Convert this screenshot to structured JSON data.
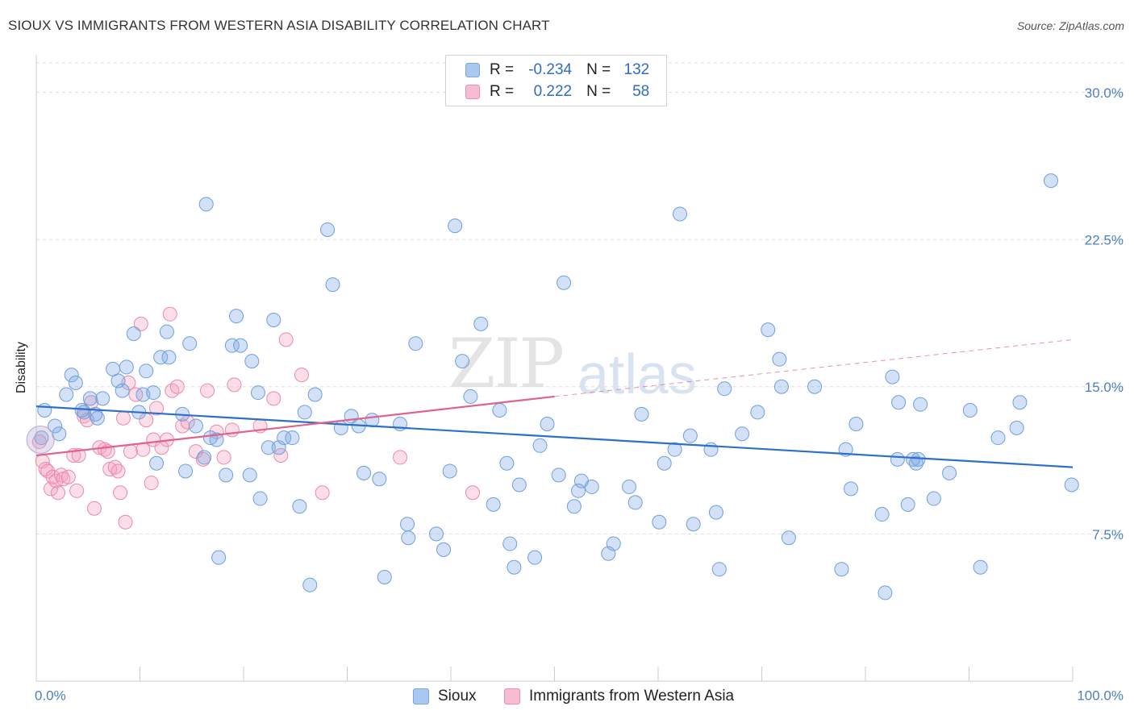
{
  "header": {
    "title": "SIOUX VS IMMIGRANTS FROM WESTERN ASIA DISABILITY CORRELATION CHART",
    "source": "Source: ZipAtlas.com"
  },
  "watermark": {
    "zip": "ZIP",
    "atlas": "atlas"
  },
  "legend": {
    "rows": [
      {
        "r_label": "R =",
        "r_value": "-0.234",
        "n_label": "N =",
        "n_value": "132",
        "color": "#a9c8f0",
        "border": "#7aa7e0"
      },
      {
        "r_label": "R =",
        "r_value": "0.222",
        "n_label": "N =",
        "n_value": "58",
        "color": "#f7bcd0",
        "border": "#ee8fb0"
      }
    ]
  },
  "bottom_legend": {
    "items": [
      {
        "label": "Sioux",
        "color": "#a9c8f0",
        "border": "#7aa7e0"
      },
      {
        "label": "Immigrants from Western Asia",
        "color": "#f7bcd0",
        "border": "#ee8fb0"
      }
    ]
  },
  "colors": {
    "sioux_fill": "rgba(126,170,230,0.35)",
    "sioux_stroke": "#6f9fdd",
    "sioux_line": "#2d6fcc",
    "imm_fill": "rgba(243,160,190,0.35)",
    "imm_stroke": "#ea8aab",
    "imm_line": "#e0628f",
    "grid": "#dddddd",
    "tick_text": "#4a7fc4"
  },
  "chart_data": {
    "type": "scatter",
    "title": "SIOUX VS IMMIGRANTS FROM WESTERN ASIA DISABILITY CORRELATION CHART",
    "xlabel": "",
    "ylabel": "Disability",
    "xlim": [
      0,
      100
    ],
    "ylim": [
      0,
      31.5
    ],
    "x_tick_labels": [
      "0.0%",
      "100.0%"
    ],
    "y_ticks": [
      7.5,
      15.0,
      22.5,
      30.0
    ],
    "y_tick_labels": [
      "7.5%",
      "15.0%",
      "22.5%",
      "30.0%"
    ],
    "grid": true,
    "legend_position": "top-center",
    "series": [
      {
        "name": "Sioux",
        "R": -0.234,
        "N": 132,
        "trend": {
          "x": [
            0,
            100
          ],
          "y": [
            14.0,
            10.9
          ]
        },
        "points": [
          [
            0.5,
            12.4
          ],
          [
            0.8,
            13.8
          ],
          [
            1.8,
            13.0
          ],
          [
            2.2,
            12.6
          ],
          [
            2.9,
            14.6
          ],
          [
            3.4,
            15.6
          ],
          [
            3.8,
            15.2
          ],
          [
            4.4,
            13.8
          ],
          [
            4.6,
            13.7
          ],
          [
            5.2,
            14.4
          ],
          [
            5.7,
            13.6
          ],
          [
            5.9,
            13.4
          ],
          [
            6.4,
            14.4
          ],
          [
            7.4,
            15.9
          ],
          [
            7.9,
            15.3
          ],
          [
            8.3,
            14.8
          ],
          [
            8.7,
            16.0
          ],
          [
            9.4,
            17.7
          ],
          [
            9.9,
            13.7
          ],
          [
            10.3,
            14.6
          ],
          [
            10.6,
            15.8
          ],
          [
            11.3,
            14.7
          ],
          [
            11.6,
            11.1
          ],
          [
            12.0,
            16.5
          ],
          [
            12.6,
            17.8
          ],
          [
            12.8,
            16.5
          ],
          [
            14.1,
            13.6
          ],
          [
            14.4,
            10.7
          ],
          [
            14.8,
            17.2
          ],
          [
            15.4,
            13.0
          ],
          [
            16.2,
            11.4
          ],
          [
            16.4,
            24.3
          ],
          [
            16.8,
            12.4
          ],
          [
            17.4,
            12.3
          ],
          [
            17.6,
            6.3
          ],
          [
            18.3,
            10.5
          ],
          [
            18.9,
            17.1
          ],
          [
            19.3,
            18.6
          ],
          [
            19.7,
            17.1
          ],
          [
            20.6,
            10.5
          ],
          [
            20.8,
            16.3
          ],
          [
            21.4,
            14.7
          ],
          [
            21.6,
            9.3
          ],
          [
            22.4,
            11.9
          ],
          [
            22.9,
            18.4
          ],
          [
            23.4,
            11.9
          ],
          [
            23.9,
            12.4
          ],
          [
            24.7,
            12.4
          ],
          [
            25.4,
            8.9
          ],
          [
            25.9,
            13.7
          ],
          [
            26.4,
            4.9
          ],
          [
            26.9,
            14.6
          ],
          [
            28.1,
            23.0
          ],
          [
            28.6,
            20.2
          ],
          [
            29.4,
            12.9
          ],
          [
            30.4,
            13.5
          ],
          [
            31.1,
            13.0
          ],
          [
            31.6,
            10.6
          ],
          [
            32.4,
            13.3
          ],
          [
            33.1,
            10.3
          ],
          [
            33.6,
            5.3
          ],
          [
            35.1,
            13.1
          ],
          [
            35.8,
            8.0
          ],
          [
            35.9,
            7.3
          ],
          [
            36.6,
            17.2
          ],
          [
            38.6,
            7.5
          ],
          [
            39.3,
            6.7
          ],
          [
            39.9,
            10.7
          ],
          [
            40.4,
            23.2
          ],
          [
            41.1,
            16.3
          ],
          [
            41.9,
            14.5
          ],
          [
            42.9,
            18.2
          ],
          [
            44.1,
            9.0
          ],
          [
            44.7,
            13.8
          ],
          [
            45.4,
            11.1
          ],
          [
            45.7,
            7.0
          ],
          [
            46.1,
            5.8
          ],
          [
            46.6,
            10.0
          ],
          [
            48.1,
            6.3
          ],
          [
            48.6,
            12.0
          ],
          [
            49.3,
            13.1
          ],
          [
            50.4,
            10.5
          ],
          [
            50.9,
            20.3
          ],
          [
            51.9,
            8.9
          ],
          [
            52.3,
            9.7
          ],
          [
            52.6,
            10.2
          ],
          [
            53.6,
            9.9
          ],
          [
            55.2,
            6.5
          ],
          [
            55.7,
            7.0
          ],
          [
            57.2,
            9.9
          ],
          [
            57.8,
            9.1
          ],
          [
            58.4,
            13.6
          ],
          [
            60.1,
            8.1
          ],
          [
            60.6,
            11.1
          ],
          [
            61.6,
            11.8
          ],
          [
            62.1,
            23.8
          ],
          [
            63.1,
            12.5
          ],
          [
            63.4,
            8.0
          ],
          [
            65.1,
            11.8
          ],
          [
            65.6,
            8.6
          ],
          [
            65.9,
            5.7
          ],
          [
            66.4,
            14.9
          ],
          [
            68.1,
            12.6
          ],
          [
            69.6,
            13.7
          ],
          [
            70.6,
            17.9
          ],
          [
            71.7,
            16.4
          ],
          [
            71.9,
            15.0
          ],
          [
            72.6,
            7.3
          ],
          [
            75.1,
            15.0
          ],
          [
            77.7,
            5.7
          ],
          [
            78.1,
            11.8
          ],
          [
            78.6,
            9.8
          ],
          [
            79.1,
            13.1
          ],
          [
            81.6,
            8.5
          ],
          [
            81.9,
            4.5
          ],
          [
            82.6,
            15.5
          ],
          [
            83.1,
            11.3
          ],
          [
            83.2,
            14.2
          ],
          [
            84.1,
            9.0
          ],
          [
            84.6,
            11.3
          ],
          [
            84.9,
            11.1
          ],
          [
            85.1,
            11.3
          ],
          [
            85.3,
            14.1
          ],
          [
            86.6,
            9.3
          ],
          [
            88.1,
            10.6
          ],
          [
            90.1,
            13.8
          ],
          [
            91.1,
            5.8
          ],
          [
            92.8,
            12.4
          ],
          [
            94.6,
            12.9
          ],
          [
            94.9,
            14.2
          ],
          [
            97.9,
            25.5
          ],
          [
            99.9,
            10.0
          ]
        ]
      },
      {
        "name": "Immigrants from Western Asia",
        "R": 0.222,
        "N": 58,
        "trend": {
          "x": [
            0,
            50
          ],
          "y": [
            11.5,
            14.5
          ]
        },
        "trend_extension": {
          "x": [
            50,
            100
          ],
          "y": [
            14.5,
            17.4
          ]
        },
        "points": [
          [
            0.3,
            12.2
          ],
          [
            0.6,
            11.2
          ],
          [
            0.9,
            10.8
          ],
          [
            1.1,
            10.7
          ],
          [
            1.4,
            9.8
          ],
          [
            1.6,
            10.4
          ],
          [
            1.9,
            10.2
          ],
          [
            2.1,
            9.6
          ],
          [
            2.4,
            10.5
          ],
          [
            2.6,
            10.3
          ],
          [
            3.1,
            10.4
          ],
          [
            3.6,
            11.5
          ],
          [
            3.9,
            9.7
          ],
          [
            4.1,
            11.5
          ],
          [
            4.6,
            13.5
          ],
          [
            4.9,
            13.3
          ],
          [
            5.3,
            14.2
          ],
          [
            5.6,
            8.8
          ],
          [
            6.1,
            11.9
          ],
          [
            6.6,
            11.8
          ],
          [
            6.9,
            11.7
          ],
          [
            7.1,
            10.8
          ],
          [
            7.6,
            10.9
          ],
          [
            7.9,
            10.7
          ],
          [
            8.1,
            9.6
          ],
          [
            8.4,
            13.4
          ],
          [
            8.6,
            8.1
          ],
          [
            8.9,
            15.2
          ],
          [
            9.1,
            11.7
          ],
          [
            9.6,
            14.6
          ],
          [
            10.1,
            18.2
          ],
          [
            10.3,
            11.8
          ],
          [
            10.6,
            13.3
          ],
          [
            11.1,
            10.1
          ],
          [
            11.3,
            12.3
          ],
          [
            11.6,
            13.9
          ],
          [
            12.1,
            11.9
          ],
          [
            12.6,
            12.3
          ],
          [
            13.1,
            14.8
          ],
          [
            13.6,
            15.0
          ],
          [
            14.1,
            13.0
          ],
          [
            14.6,
            13.2
          ],
          [
            15.4,
            11.7
          ],
          [
            16.1,
            11.3
          ],
          [
            16.5,
            14.8
          ],
          [
            17.4,
            12.7
          ],
          [
            18.1,
            11.4
          ],
          [
            18.9,
            12.8
          ],
          [
            19.1,
            15.1
          ],
          [
            21.6,
            13.0
          ],
          [
            22.9,
            14.4
          ],
          [
            23.6,
            11.5
          ],
          [
            24.1,
            17.4
          ],
          [
            25.6,
            15.6
          ],
          [
            27.6,
            9.6
          ],
          [
            35.1,
            11.4
          ],
          [
            42.1,
            9.6
          ],
          [
            12.9,
            18.7
          ]
        ]
      }
    ]
  }
}
